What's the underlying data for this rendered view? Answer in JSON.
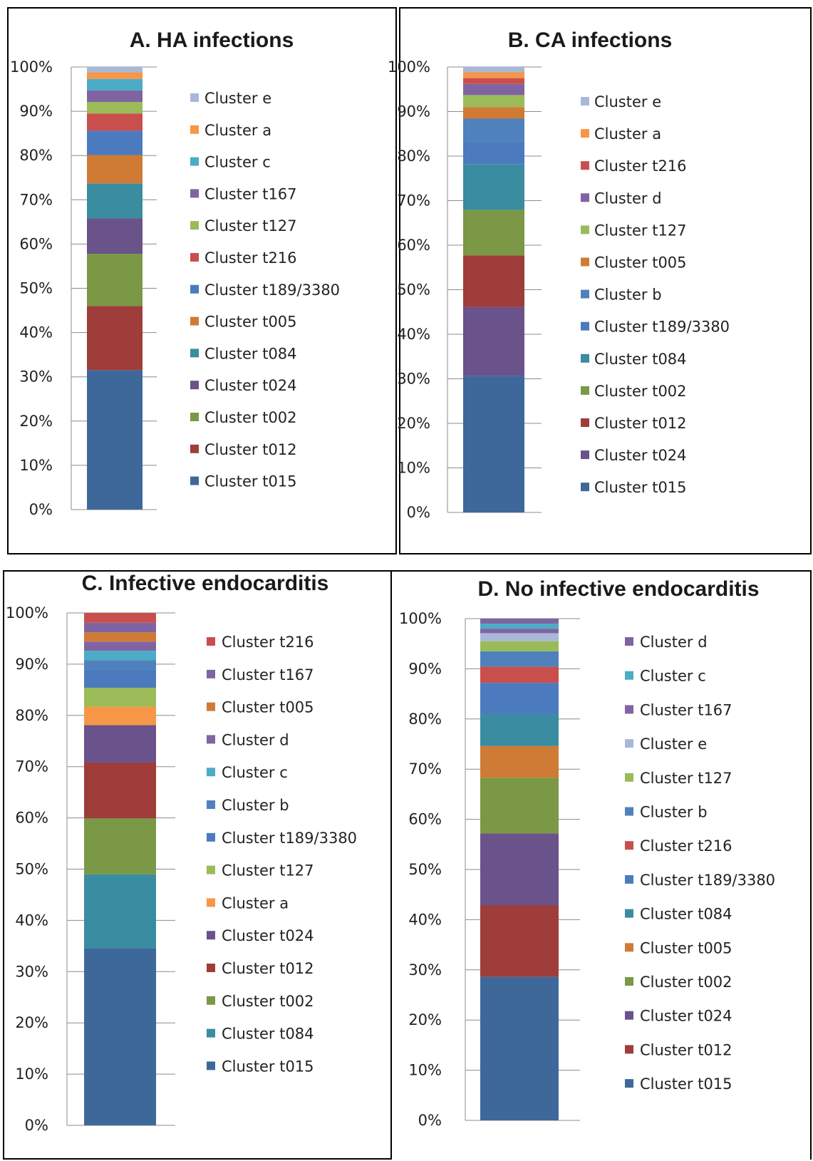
{
  "colors": {
    "Cluster t015": "#3E689A",
    "Cluster t012": "#9E3D3A",
    "Cluster t002": "#7A9845",
    "Cluster t024": "#6A528A",
    "Cluster t084": "#3A8CA0",
    "Cluster t005": "#D07B35",
    "Cluster t189/3380": "#4B7BBE",
    "Cluster t216": "#C94F4C",
    "Cluster t127": "#9BBB59",
    "Cluster t167": "#8064A2",
    "Cluster c": "#4BACC6",
    "Cluster a": "#F79646",
    "Cluster e": "#A8B8D8",
    "Cluster d": "#8064A2",
    "Cluster b": "#4F81BD"
  },
  "chart_data": [
    {
      "type": "bar",
      "stacked": true,
      "title": "A. HA infections",
      "yticks": [
        "0%",
        "10%",
        "20%",
        "30%",
        "40%",
        "50%",
        "60%",
        "70%",
        "80%",
        "90%",
        "100%"
      ],
      "ylim": [
        0,
        100
      ],
      "legend_position": "right",
      "series": [
        {
          "name": "Cluster t015",
          "values": [
            31.5
          ]
        },
        {
          "name": "Cluster t012",
          "values": [
            14.5
          ]
        },
        {
          "name": "Cluster t002",
          "values": [
            11.8
          ]
        },
        {
          "name": "Cluster t024",
          "values": [
            8.0
          ]
        },
        {
          "name": "Cluster t084",
          "values": [
            7.9
          ]
        },
        {
          "name": "Cluster t005",
          "values": [
            6.4
          ]
        },
        {
          "name": "Cluster t189/3380",
          "values": [
            5.5
          ]
        },
        {
          "name": "Cluster t216",
          "values": [
            3.9
          ]
        },
        {
          "name": "Cluster t127",
          "values": [
            2.6
          ]
        },
        {
          "name": "Cluster t167",
          "values": [
            2.6
          ]
        },
        {
          "name": "Cluster c",
          "values": [
            2.6
          ]
        },
        {
          "name": "Cluster a",
          "values": [
            1.5
          ]
        },
        {
          "name": "Cluster e",
          "values": [
            1.2
          ]
        }
      ]
    },
    {
      "type": "bar",
      "stacked": true,
      "title": "B. CA infections",
      "yticks": [
        "0%",
        "10%",
        "20%",
        "30%",
        "40%",
        "50%",
        "60%",
        "70%",
        "80%",
        "90%",
        "100%"
      ],
      "ylim": [
        0,
        100
      ],
      "legend_position": "right",
      "series": [
        {
          "name": "Cluster t015",
          "values": [
            30.7
          ]
        },
        {
          "name": "Cluster t024",
          "values": [
            15.4
          ]
        },
        {
          "name": "Cluster t012",
          "values": [
            11.6
          ]
        },
        {
          "name": "Cluster t002",
          "values": [
            10.2
          ]
        },
        {
          "name": "Cluster t084",
          "values": [
            10.3
          ]
        },
        {
          "name": "Cluster t189/3380",
          "values": [
            5.1
          ]
        },
        {
          "name": "Cluster b",
          "values": [
            5.1
          ]
        },
        {
          "name": "Cluster t005",
          "values": [
            2.6
          ]
        },
        {
          "name": "Cluster t127",
          "values": [
            2.7
          ]
        },
        {
          "name": "Cluster d",
          "values": [
            2.5
          ]
        },
        {
          "name": "Cluster t216",
          "values": [
            1.3
          ]
        },
        {
          "name": "Cluster a",
          "values": [
            1.3
          ]
        },
        {
          "name": "Cluster e",
          "values": [
            1.2
          ]
        }
      ]
    },
    {
      "type": "bar",
      "stacked": true,
      "title": "C. Infective endocarditis",
      "yticks": [
        "0%",
        "10%",
        "20%",
        "30%",
        "40%",
        "50%",
        "60%",
        "70%",
        "80%",
        "90%",
        "100%"
      ],
      "ylim": [
        0,
        100
      ],
      "legend_position": "right",
      "series": [
        {
          "name": "Cluster t015",
          "values": [
            34.6
          ]
        },
        {
          "name": "Cluster t084",
          "values": [
            14.4
          ]
        },
        {
          "name": "Cluster t002",
          "values": [
            10.9
          ]
        },
        {
          "name": "Cluster t012",
          "values": [
            10.9
          ]
        },
        {
          "name": "Cluster t024",
          "values": [
            7.3
          ]
        },
        {
          "name": "Cluster a",
          "values": [
            3.6
          ]
        },
        {
          "name": "Cluster t127",
          "values": [
            3.7
          ]
        },
        {
          "name": "Cluster t189/3380",
          "values": [
            3.6
          ]
        },
        {
          "name": "Cluster b",
          "values": [
            1.8
          ]
        },
        {
          "name": "Cluster c",
          "values": [
            1.8
          ]
        },
        {
          "name": "Cluster d",
          "values": [
            1.8
          ]
        },
        {
          "name": "Cluster t005",
          "values": [
            1.8
          ]
        },
        {
          "name": "Cluster t167",
          "values": [
            1.9
          ]
        },
        {
          "name": "Cluster t216",
          "values": [
            1.9
          ]
        }
      ]
    },
    {
      "type": "bar",
      "stacked": true,
      "title": "D. No infective endocarditis",
      "yticks": [
        "0%",
        "10%",
        "20%",
        "30%",
        "40%",
        "50%",
        "60%",
        "70%",
        "80%",
        "90%",
        "100%"
      ],
      "ylim": [
        0,
        100
      ],
      "legend_position": "right",
      "series": [
        {
          "name": "Cluster t015",
          "values": [
            28.6
          ]
        },
        {
          "name": "Cluster t012",
          "values": [
            14.3
          ]
        },
        {
          "name": "Cluster t024",
          "values": [
            14.3
          ]
        },
        {
          "name": "Cluster t002",
          "values": [
            11.1
          ]
        },
        {
          "name": "Cluster t005",
          "values": [
            6.3
          ]
        },
        {
          "name": "Cluster t084",
          "values": [
            6.3
          ]
        },
        {
          "name": "Cluster t189/3380",
          "values": [
            6.3
          ]
        },
        {
          "name": "Cluster t216",
          "values": [
            3.2
          ]
        },
        {
          "name": "Cluster b",
          "values": [
            3.1
          ]
        },
        {
          "name": "Cluster t127",
          "values": [
            2.0
          ]
        },
        {
          "name": "Cluster e",
          "values": [
            1.6
          ]
        },
        {
          "name": "Cluster t167",
          "values": [
            0.9
          ]
        },
        {
          "name": "Cluster c",
          "values": [
            1.0
          ]
        },
        {
          "name": "Cluster d",
          "values": [
            1.0
          ]
        }
      ]
    }
  ]
}
